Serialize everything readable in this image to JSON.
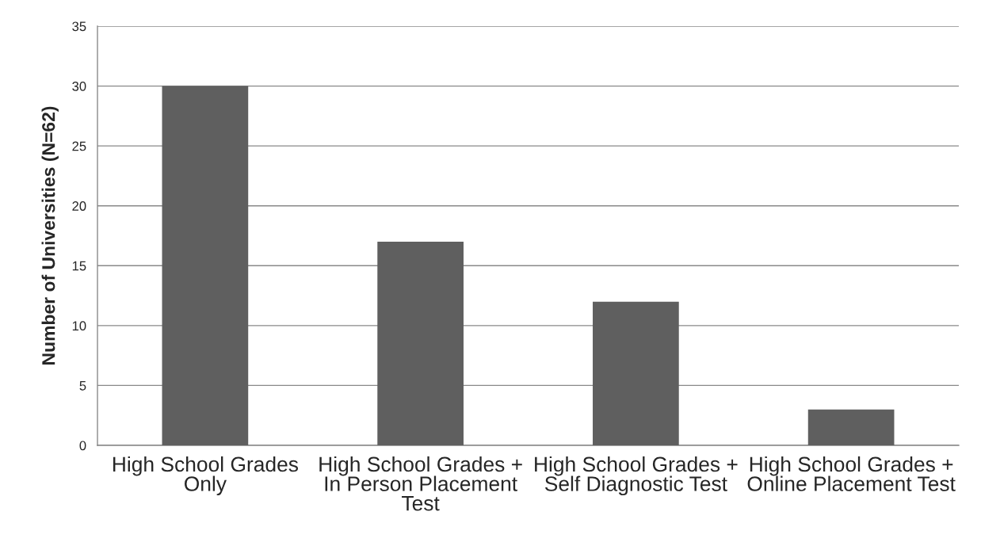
{
  "chart_data": {
    "type": "bar",
    "categories": [
      "High School Grades Only",
      "High School Grades + In Person Placement Test",
      "High School Grades + Self Diagnostic Test",
      "High School Grades + Online Placement Test"
    ],
    "values": [
      30,
      17,
      12,
      3
    ],
    "color": "#5f5f5f",
    "ylabel": "Number of Universities (N=62)",
    "ylim": [
      0,
      35
    ],
    "yticks": [
      0,
      5,
      10,
      15,
      20,
      25,
      30,
      35
    ],
    "grid": "y"
  }
}
